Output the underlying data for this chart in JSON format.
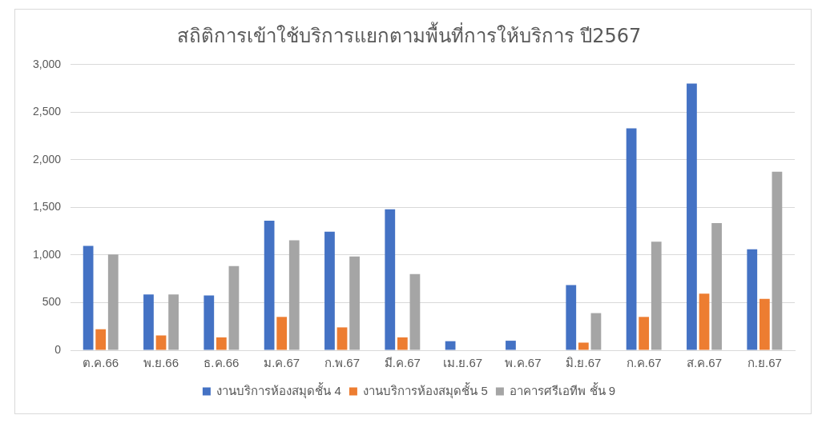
{
  "chart_data": {
    "type": "bar",
    "title": "สถิติการเข้าใช้บริการแยกตามพื้นที่การให้บริการ ปี2567",
    "categories": [
      "ต.ค.66",
      "พ.ย.66",
      "ธ.ค.66",
      "ม.ค.67",
      "ก.พ.67",
      "มี.ค.67",
      "เม.ย.67",
      "พ.ค.67",
      "มิ.ย.67",
      "ก.ค.67",
      "ส.ค.67",
      "ก.ย.67"
    ],
    "series": [
      {
        "name": "งานบริการห้องสมุดชั้น 4",
        "color": "#4472c4",
        "values": [
          1095,
          585,
          575,
          1360,
          1245,
          1480,
          95,
          100,
          685,
          2330,
          2800,
          1060
        ]
      },
      {
        "name": "งานบริการห้องสมุดชั้น 5",
        "color": "#ed7d31",
        "values": [
          220,
          155,
          135,
          350,
          240,
          135,
          null,
          null,
          80,
          350,
          595,
          540
        ]
      },
      {
        "name": "อาคารศรีเอทีพ ชั้น 9",
        "color": "#a5a5a5",
        "values": [
          1005,
          585,
          885,
          1155,
          985,
          800,
          null,
          null,
          390,
          1140,
          1335,
          1875
        ]
      }
    ],
    "ylim": [
      0,
      3000
    ],
    "yticks": [
      0,
      {
        "value": 500,
        "label": "500"
      },
      {
        "value": 1000,
        "label": "1,000"
      },
      {
        "value": 1500,
        "label": "1,500"
      },
      {
        "value": 2000,
        "label": "2,000"
      },
      {
        "value": 2500,
        "label": "2,500"
      },
      {
        "value": 3000,
        "label": "3,000"
      }
    ],
    "grid": "y",
    "legend": "bottom"
  }
}
